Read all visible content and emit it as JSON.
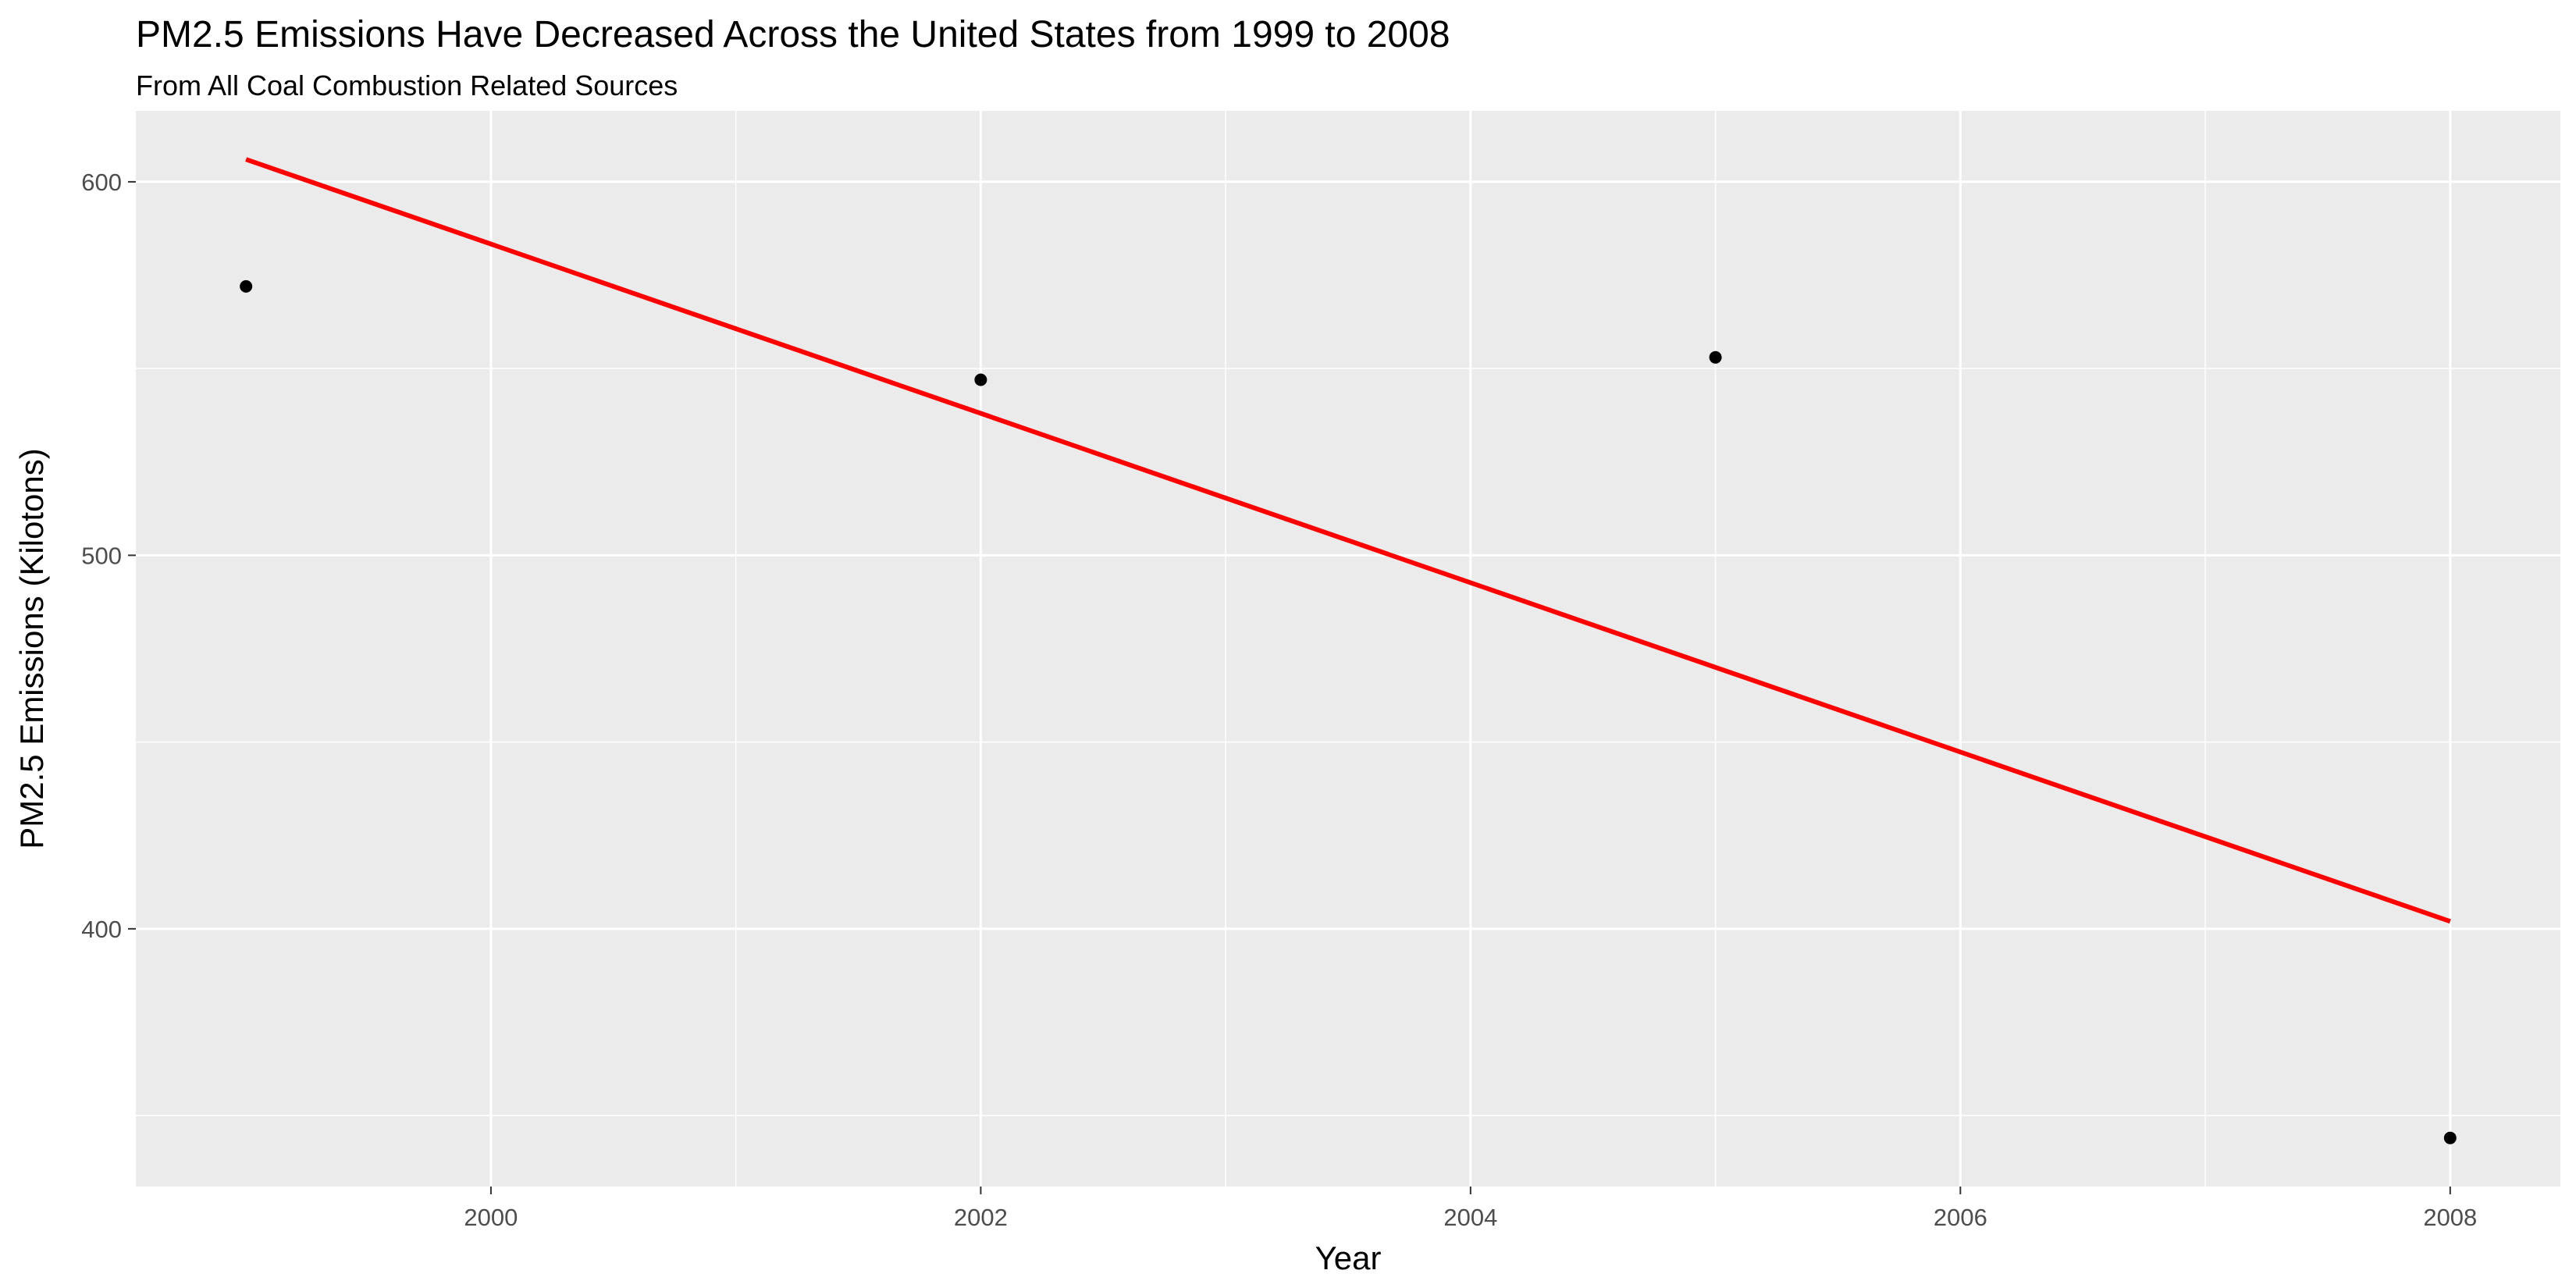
{
  "chart_data": {
    "type": "scatter",
    "title": "PM2.5 Emissions Have Decreased Across the United States from 1999 to 2008",
    "subtitle": "From All Coal Combustion Related Sources",
    "xlabel": "Year",
    "ylabel": "PM2.5 Emissions (Kilotons)",
    "xlim": [
      1998.55,
      2008.45
    ],
    "ylim": [
      331,
      619
    ],
    "x_ticks": [
      2000,
      2002,
      2004,
      2006,
      2008
    ],
    "y_ticks": [
      400,
      500,
      600
    ],
    "x_tick_labels": [
      "2000",
      "2002",
      "2004",
      "2006",
      "2008"
    ],
    "y_tick_labels": [
      "400",
      "500",
      "600"
    ],
    "grid": true,
    "legend": "none",
    "points": [
      {
        "x": 1999,
        "y": 572
      },
      {
        "x": 2002,
        "y": 547
      },
      {
        "x": 2005,
        "y": 553
      },
      {
        "x": 2008,
        "y": 344
      }
    ],
    "trend_line": {
      "type": "linear",
      "x": [
        1999,
        2008
      ],
      "y": [
        606,
        402
      ]
    },
    "colors": {
      "panel": "#ebebeb",
      "grid": "#ffffff",
      "points": "#000000",
      "trend_line": "#ff0000"
    }
  }
}
